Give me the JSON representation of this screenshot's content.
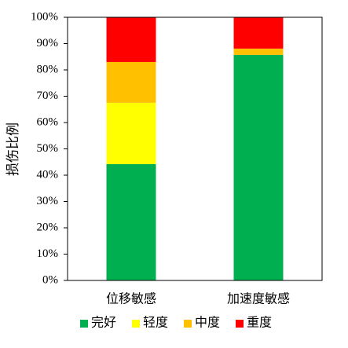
{
  "chart_data": {
    "type": "stacked_bar",
    "y_label": "损伤比例",
    "categories": [
      "位移敏感",
      "加速度敏感"
    ],
    "series": [
      {
        "name": "完好",
        "color": "#00b050",
        "values": [
          44.2,
          85.7
        ]
      },
      {
        "name": "轻度",
        "color": "#ffff00",
        "values": [
          23.3,
          0
        ]
      },
      {
        "name": "中度",
        "color": "#ffc000",
        "values": [
          15.5,
          2.4
        ]
      },
      {
        "name": "重度",
        "color": "#ff0000",
        "values": [
          17.0,
          11.9
        ]
      }
    ],
    "ylim": [
      0,
      100
    ],
    "yticks": [
      {
        "value": 0,
        "label": "0%"
      },
      {
        "value": 10,
        "label": "10%"
      },
      {
        "value": 20,
        "label": "20%"
      },
      {
        "value": 30,
        "label": "30%"
      },
      {
        "value": 40,
        "label": "40%"
      },
      {
        "value": 50,
        "label": "50%"
      },
      {
        "value": 60,
        "label": "60%"
      },
      {
        "value": 70,
        "label": "70%"
      },
      {
        "value": 80,
        "label": "80%"
      },
      {
        "value": 90,
        "label": "90%"
      },
      {
        "value": 100,
        "label": "100%"
      }
    ],
    "legend": "bottom"
  }
}
